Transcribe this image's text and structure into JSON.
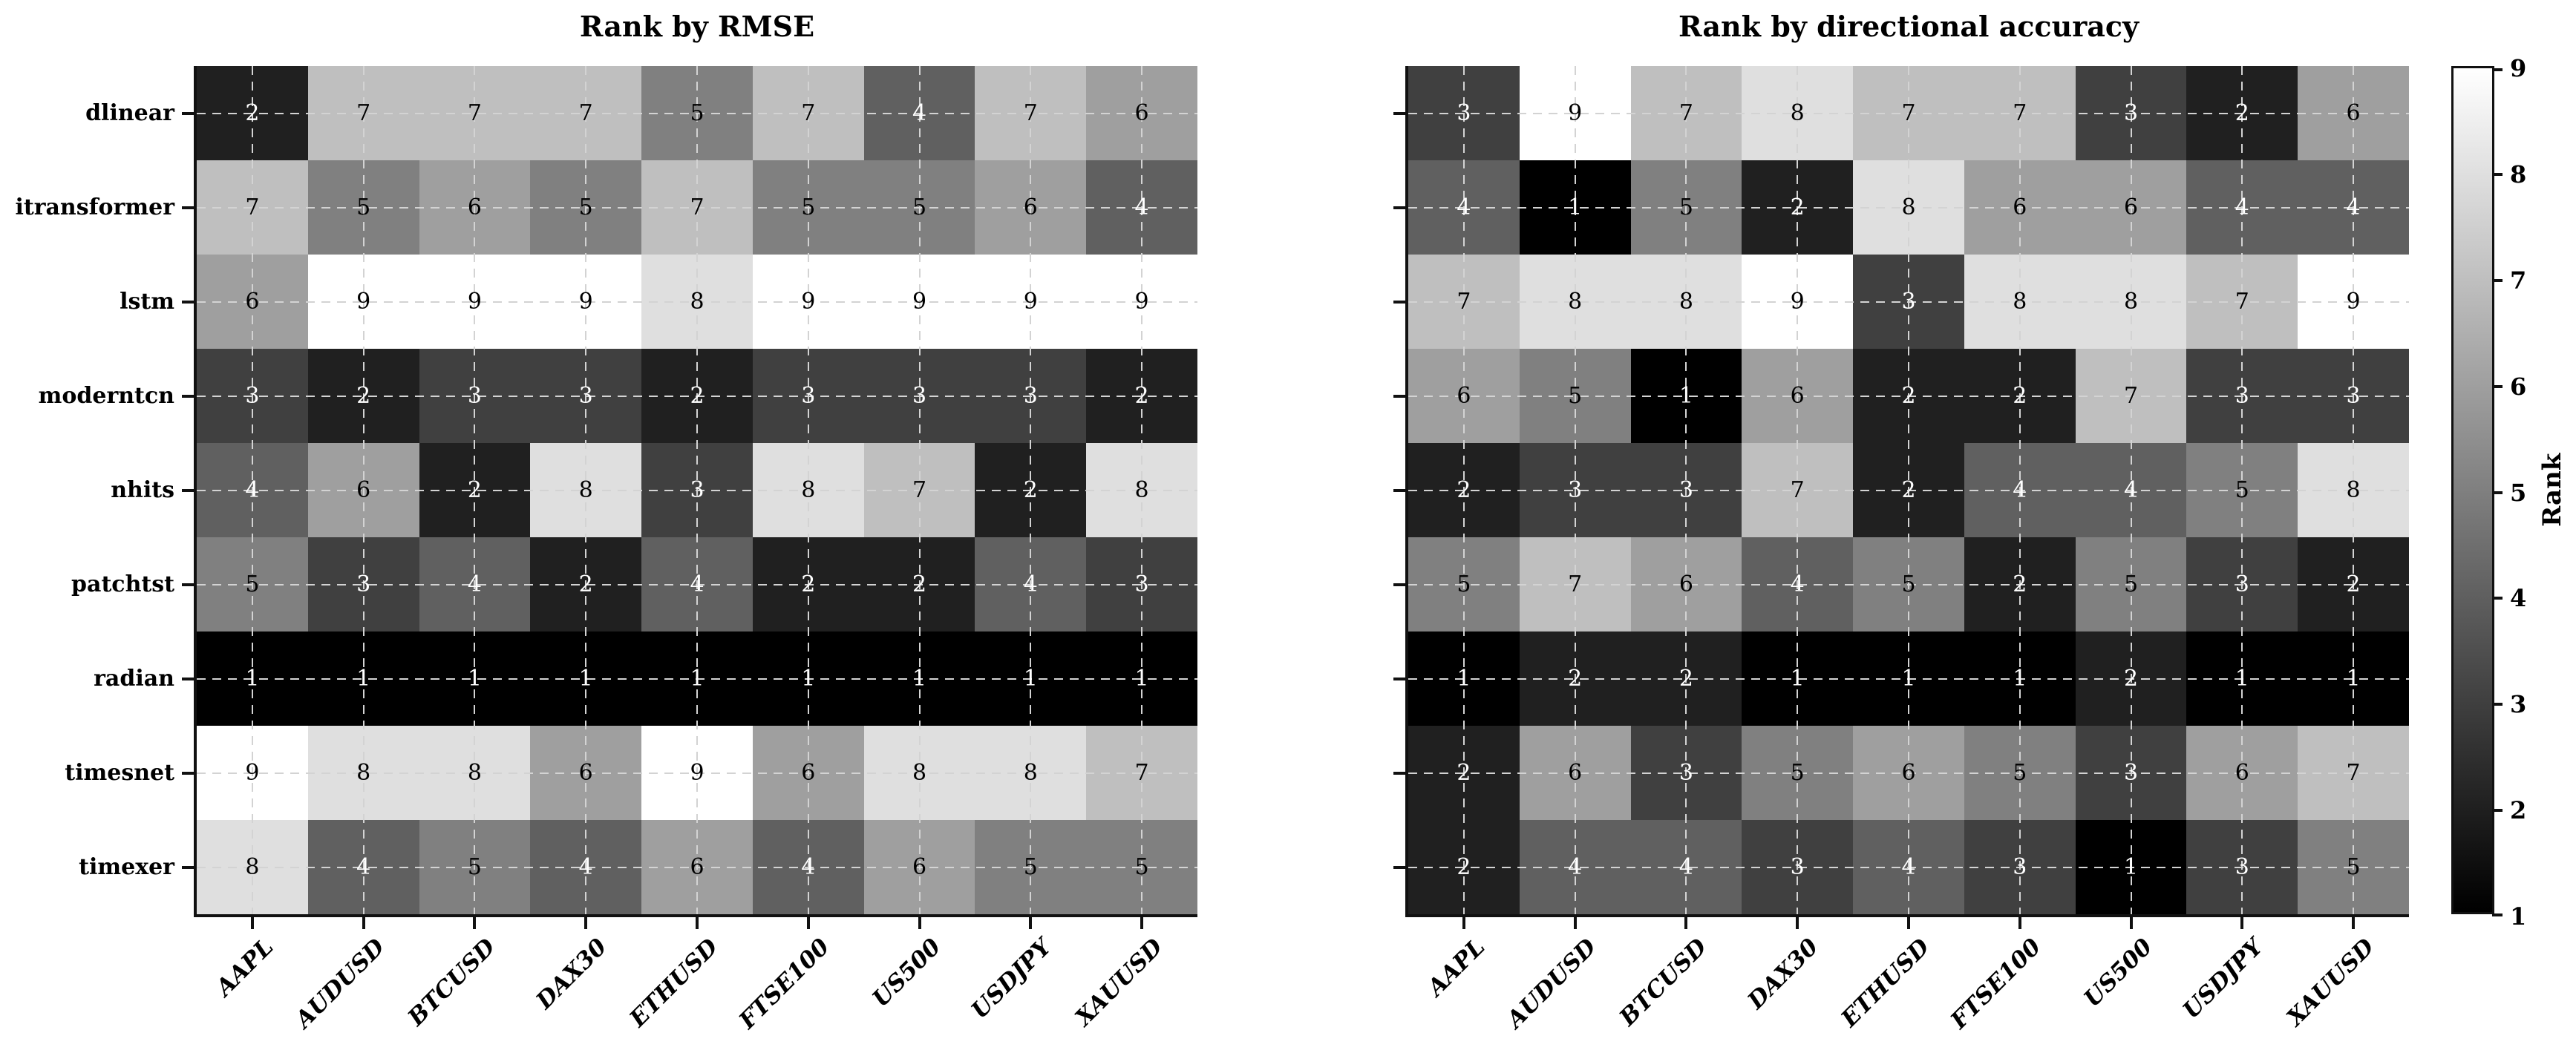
{
  "figure": {
    "background": "#ffffff",
    "colors": {
      "spine": "#111111",
      "gridline": "#d3d3d3",
      "cell_text_dark": "#000000",
      "cell_text_light": "#ffffff",
      "colormap_low": "#000000",
      "colormap_high": "#ffffff"
    }
  },
  "chart_data": [
    {
      "type": "heatmap",
      "title": "Rank by RMSE",
      "x_categories": [
        "AAPL",
        "AUDUSD",
        "BTCUSD",
        "DAX30",
        "ETHUSD",
        "FTSE100",
        "US500",
        "USDJPY",
        "XAUUSD"
      ],
      "y_categories": [
        "dlinear",
        "itransformer",
        "lstm",
        "moderntcn",
        "nhits",
        "patchtst",
        "radian",
        "timesnet",
        "timexer"
      ],
      "values": [
        [
          2,
          7,
          7,
          7,
          5,
          7,
          4,
          7,
          6
        ],
        [
          7,
          5,
          6,
          5,
          7,
          5,
          5,
          6,
          4
        ],
        [
          6,
          9,
          9,
          9,
          8,
          9,
          9,
          9,
          9
        ],
        [
          3,
          2,
          3,
          3,
          2,
          3,
          3,
          3,
          2
        ],
        [
          4,
          6,
          2,
          8,
          3,
          8,
          7,
          2,
          8
        ],
        [
          5,
          3,
          4,
          2,
          4,
          2,
          2,
          4,
          3
        ],
        [
          1,
          1,
          1,
          1,
          1,
          1,
          1,
          1,
          1
        ],
        [
          9,
          8,
          8,
          6,
          9,
          6,
          8,
          8,
          7
        ],
        [
          8,
          4,
          5,
          4,
          6,
          4,
          6,
          5,
          5
        ]
      ],
      "vmin": 1,
      "vmax": 9,
      "colormap": "gray (1=black, 9=white)",
      "gridlines": "dashed light-gray lines through cell centers",
      "x_tick_rotation_deg": 45,
      "show_y_tick_labels": true
    },
    {
      "type": "heatmap",
      "title": "Rank by directional accuracy",
      "x_categories": [
        "AAPL",
        "AUDUSD",
        "BTCUSD",
        "DAX30",
        "ETHUSD",
        "FTSE100",
        "US500",
        "USDJPY",
        "XAUUSD"
      ],
      "y_categories": [
        "dlinear",
        "itransformer",
        "lstm",
        "moderntcn",
        "nhits",
        "patchtst",
        "radian",
        "timesnet",
        "timexer"
      ],
      "values": [
        [
          3,
          9,
          7,
          8,
          7,
          7,
          3,
          2,
          6
        ],
        [
          4,
          1,
          5,
          2,
          8,
          6,
          6,
          4,
          4
        ],
        [
          7,
          8,
          8,
          9,
          3,
          8,
          8,
          7,
          9
        ],
        [
          6,
          5,
          1,
          6,
          2,
          2,
          7,
          3,
          3
        ],
        [
          2,
          3,
          3,
          7,
          2,
          4,
          4,
          5,
          8
        ],
        [
          5,
          7,
          6,
          4,
          5,
          2,
          5,
          3,
          2
        ],
        [
          1,
          2,
          2,
          1,
          1,
          1,
          2,
          1,
          1
        ],
        [
          2,
          6,
          3,
          5,
          6,
          5,
          3,
          6,
          7
        ],
        [
          2,
          4,
          4,
          3,
          4,
          3,
          1,
          3,
          5
        ]
      ],
      "vmin": 1,
      "vmax": 9,
      "colormap": "gray (1=black, 9=white)",
      "gridlines": "dashed light-gray lines through cell centers",
      "x_tick_rotation_deg": 45,
      "show_y_tick_labels": false
    }
  ],
  "colorbar": {
    "label": "Rank",
    "tick_labels": [
      "9",
      "8",
      "7",
      "6",
      "5",
      "4",
      "3",
      "2",
      "1"
    ],
    "top_value": 9,
    "bottom_value": 1,
    "gradient": "white (9) at top to black (1) at bottom"
  }
}
